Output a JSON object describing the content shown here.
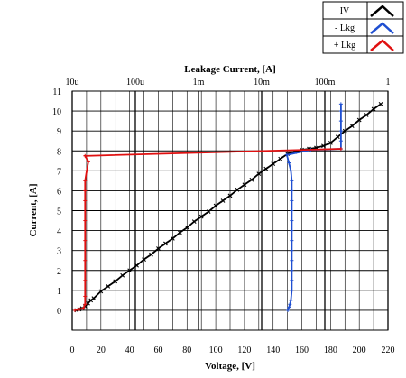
{
  "chart_data": {
    "type": "line",
    "title": "",
    "xlabel": "Voltage, [V]",
    "ylabel": "Current, [A]",
    "x2label": "Leakage Current, [A]",
    "xlim": [
      0,
      220
    ],
    "ylim": [
      -1,
      11
    ],
    "x2lim": [
      1e-05,
      1
    ],
    "x2scale": "log",
    "grid": true,
    "xticks": [
      "0",
      "20",
      "40",
      "60",
      "80",
      "100",
      "120",
      "140",
      "160",
      "180",
      "200",
      "220"
    ],
    "yticks": [
      "0",
      "1",
      "2",
      "3",
      "4",
      "5",
      "6",
      "7",
      "8",
      "9",
      "10",
      "11"
    ],
    "x2ticks": [
      "10u",
      "100u",
      "1m",
      "10m",
      "100m",
      "1"
    ],
    "legend": {
      "placement": "top-right, outside plot"
    },
    "series": [
      {
        "name": "IV",
        "axis": "voltage",
        "color": "#000000",
        "marker": "x",
        "points": [
          [
            3,
            0
          ],
          [
            5,
            0.05
          ],
          [
            7,
            0.1
          ],
          [
            9,
            0.2
          ],
          [
            11,
            0.35
          ],
          [
            13,
            0.5
          ],
          [
            15,
            0.6
          ],
          [
            20,
            0.95
          ],
          [
            25,
            1.2
          ],
          [
            30,
            1.45
          ],
          [
            35,
            1.75
          ],
          [
            40,
            2.0
          ],
          [
            45,
            2.25
          ],
          [
            50,
            2.55
          ],
          [
            55,
            2.8
          ],
          [
            60,
            3.1
          ],
          [
            65,
            3.35
          ],
          [
            70,
            3.6
          ],
          [
            75,
            3.9
          ],
          [
            80,
            4.15
          ],
          [
            85,
            4.45
          ],
          [
            90,
            4.7
          ],
          [
            95,
            4.95
          ],
          [
            100,
            5.25
          ],
          [
            105,
            5.5
          ],
          [
            110,
            5.75
          ],
          [
            115,
            6.05
          ],
          [
            120,
            6.3
          ],
          [
            125,
            6.55
          ],
          [
            130,
            6.85
          ],
          [
            135,
            7.1
          ],
          [
            140,
            7.35
          ],
          [
            145,
            7.6
          ],
          [
            150,
            7.85
          ],
          [
            155,
            7.95
          ],
          [
            160,
            8.05
          ],
          [
            165,
            8.1
          ],
          [
            170,
            8.15
          ],
          [
            175,
            8.25
          ],
          [
            180,
            8.4
          ],
          [
            185,
            8.7
          ],
          [
            190,
            9.0
          ],
          [
            195,
            9.25
          ],
          [
            200,
            9.55
          ],
          [
            205,
            9.8
          ],
          [
            210,
            10.1
          ],
          [
            215,
            10.35
          ]
        ]
      },
      {
        "name": "- Lkg",
        "axis": "leakage",
        "color": "#1f4fd1",
        "marker": "+",
        "points": [
          [
            0.026,
            0
          ],
          [
            0.027,
            0.15
          ],
          [
            0.028,
            0.3
          ],
          [
            0.029,
            0.5
          ],
          [
            0.03,
            1.0
          ],
          [
            0.03,
            1.5
          ],
          [
            0.03,
            2.0
          ],
          [
            0.03,
            2.5
          ],
          [
            0.03,
            3.0
          ],
          [
            0.03,
            3.5
          ],
          [
            0.03,
            4.0
          ],
          [
            0.03,
            4.5
          ],
          [
            0.03,
            5.0
          ],
          [
            0.03,
            5.5
          ],
          [
            0.03,
            6.0
          ],
          [
            0.03,
            6.5
          ],
          [
            0.029,
            7.0
          ],
          [
            0.027,
            7.4
          ],
          [
            0.025,
            7.8
          ],
          [
            0.06,
            8.05
          ],
          [
            0.18,
            8.1
          ],
          [
            0.18,
            8.5
          ],
          [
            0.18,
            9.0
          ],
          [
            0.18,
            9.5
          ],
          [
            0.18,
            10.0
          ],
          [
            0.18,
            10.35
          ]
        ]
      },
      {
        "name": "+ Lkg",
        "axis": "leakage",
        "color": "#e01010",
        "marker": "+",
        "points": [
          [
            1.1e-05,
            0
          ],
          [
            1.3e-05,
            0.05
          ],
          [
            1.5e-05,
            0.1
          ],
          [
            1.6e-05,
            0.3
          ],
          [
            1.6e-05,
            0.7
          ],
          [
            1.6e-05,
            1.5
          ],
          [
            1.6e-05,
            2.5
          ],
          [
            1.6e-05,
            3.5
          ],
          [
            1.6e-05,
            4.5
          ],
          [
            1.6e-05,
            5.5
          ],
          [
            1.6e-05,
            6.0
          ],
          [
            1.6e-05,
            6.5
          ],
          [
            1.7e-05,
            7.0
          ],
          [
            1.8e-05,
            7.45
          ],
          [
            1.6e-05,
            7.75
          ],
          [
            0.18,
            8.1
          ]
        ]
      }
    ]
  }
}
